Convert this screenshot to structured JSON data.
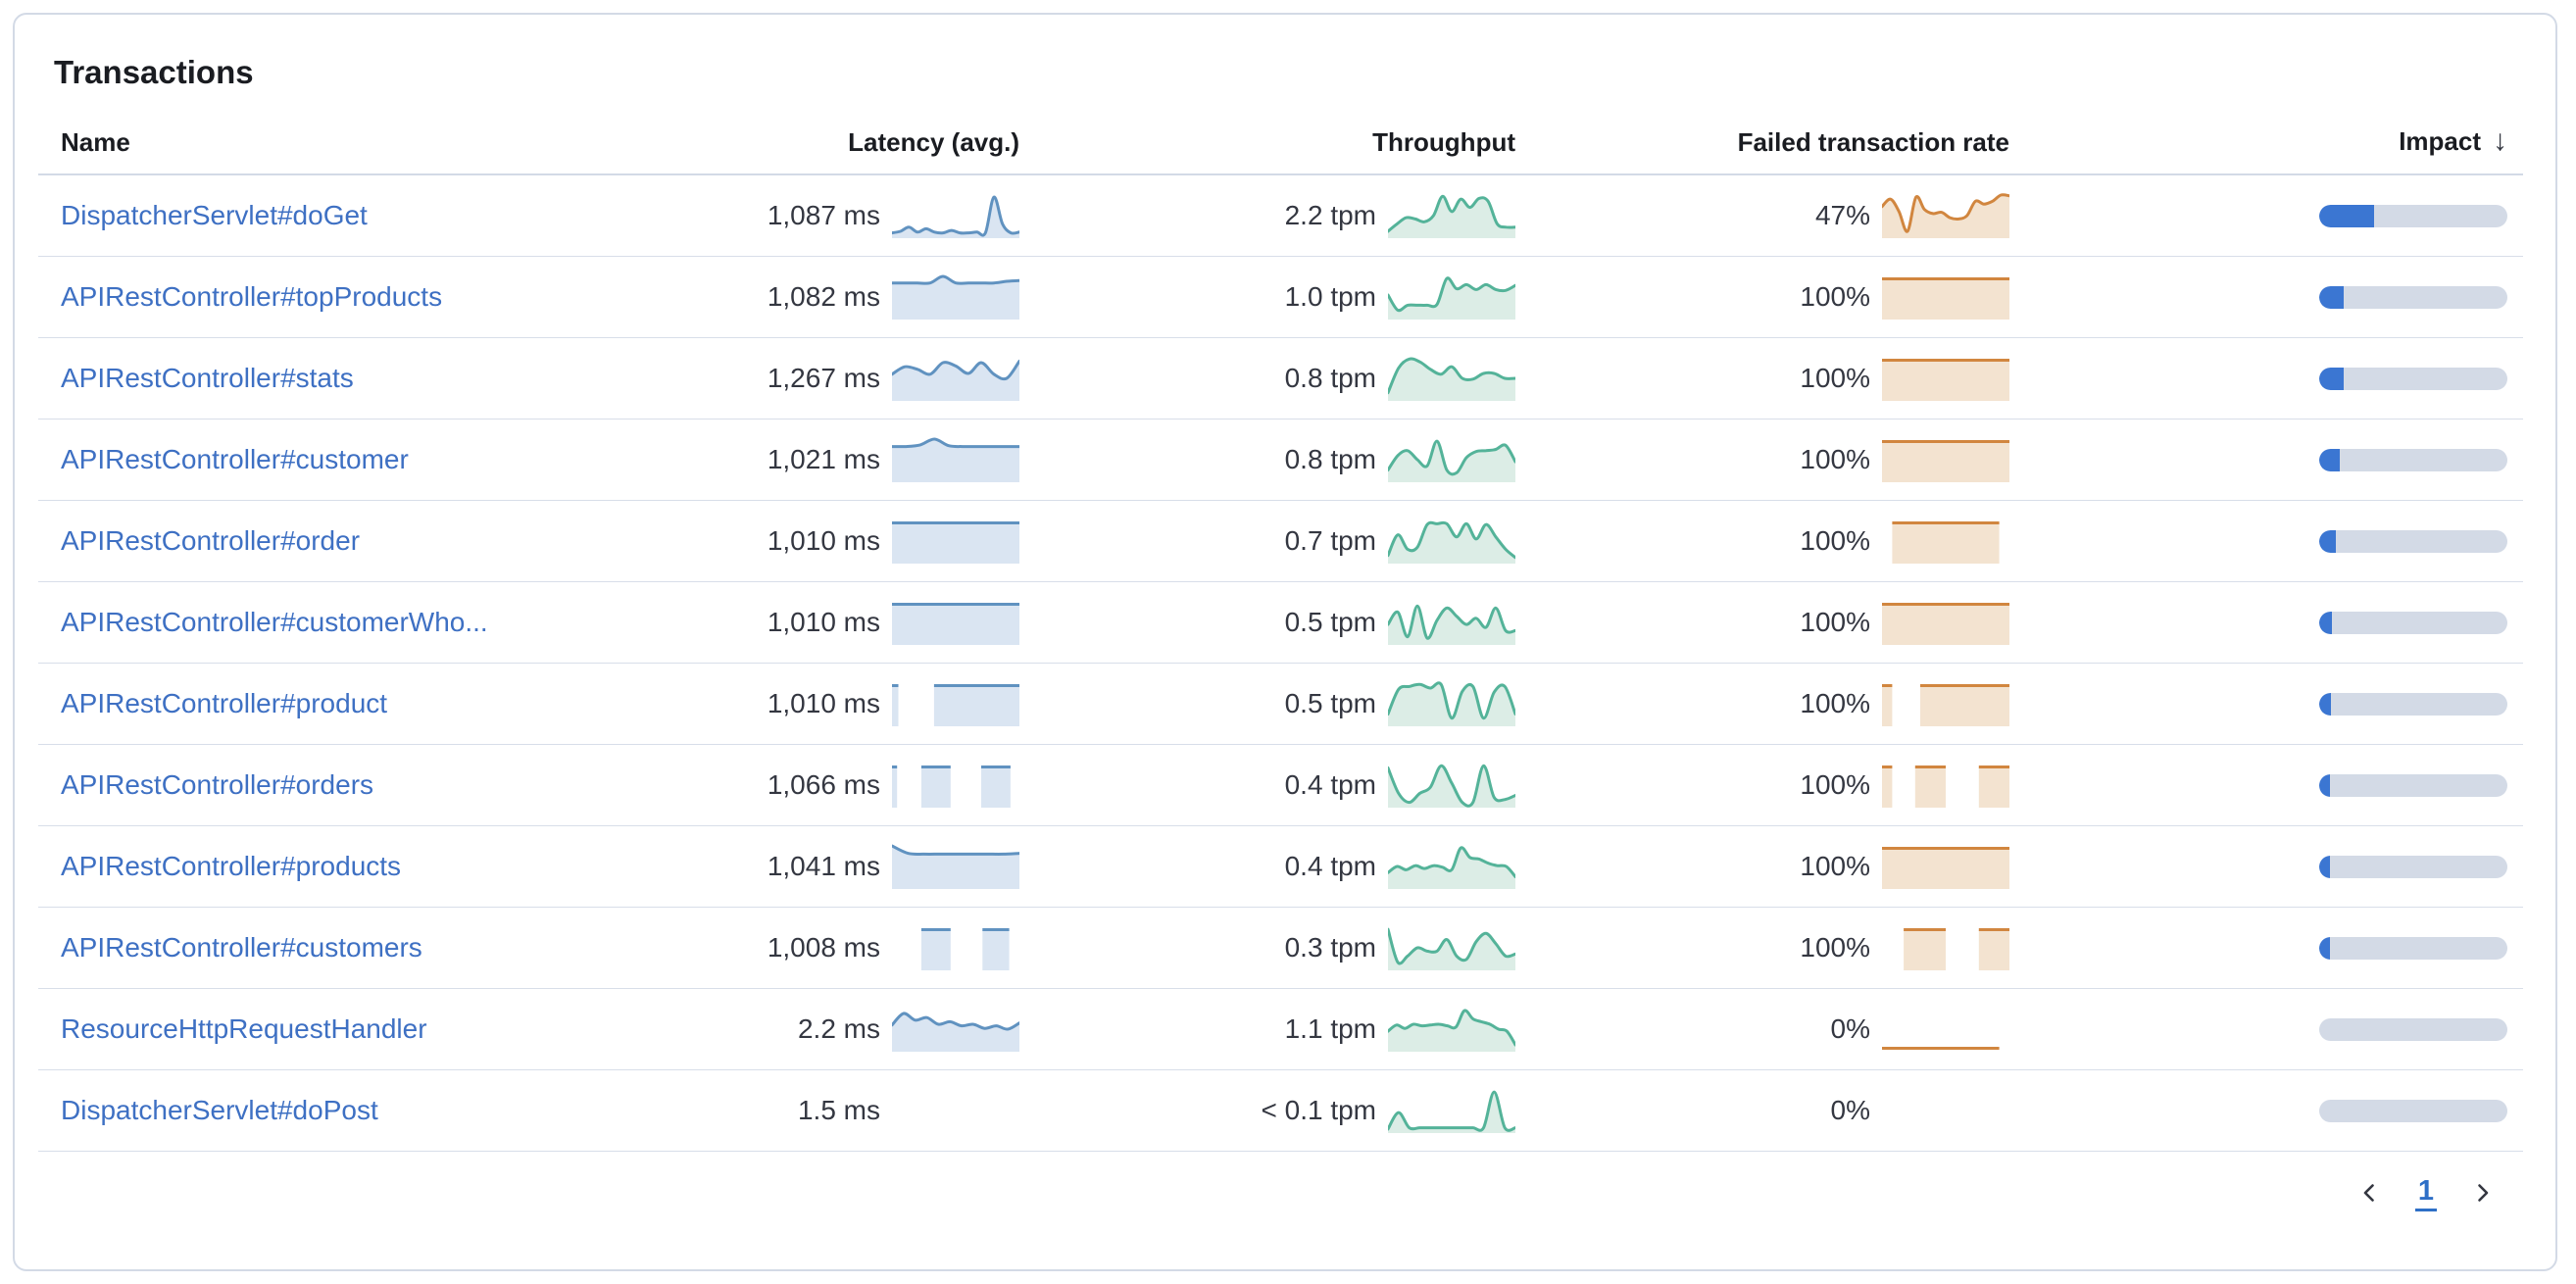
{
  "title": "Transactions",
  "colors": {
    "latency_line": "#6092C0",
    "latency_fill": "#DAE5F2",
    "throughput_line": "#54B399",
    "throughput_fill": "#DCEDE6",
    "failed_line": "#D1863F",
    "failed_fill": "#F3E3D0",
    "impact_fill": "#3B76D2",
    "impact_track": "#D3DAE6",
    "link": "#3E70C3"
  },
  "table": {
    "columns": {
      "name": "Name",
      "latency": "Latency (avg.)",
      "throughput": "Throughput",
      "failed": "Failed transaction rate",
      "impact": "Impact"
    },
    "sort_icon": "↓",
    "rows": [
      {
        "name": "DispatcherServlet#doGet",
        "latency": "1,087 ms",
        "latency_spark": {
          "type": "area",
          "points": [
            0.08,
            0.12,
            0.22,
            0.1,
            0.18,
            0.1,
            0.08,
            0.14,
            0.08,
            0.08,
            0.1,
            0.08,
            0.95,
            0.3,
            0.08,
            0.1
          ]
        },
        "throughput": "2.2 tpm",
        "throughput_spark": {
          "type": "area",
          "points": [
            0.12,
            0.3,
            0.45,
            0.42,
            0.35,
            0.5,
            0.97,
            0.6,
            0.9,
            0.7,
            0.92,
            0.85,
            0.3,
            0.22,
            0.22
          ]
        },
        "failed": "47%",
        "failed_spark": {
          "type": "area",
          "points": [
            0.72,
            0.9,
            0.6,
            0.12,
            0.95,
            0.65,
            0.55,
            0.58,
            0.45,
            0.42,
            0.5,
            0.85,
            0.78,
            0.85,
            1.0,
            0.98
          ]
        },
        "impact_pct": 29
      },
      {
        "name": "APIRestController#topProducts",
        "latency": "1,082 ms",
        "latency_spark": {
          "type": "area",
          "points": [
            0.84,
            0.84,
            0.84,
            0.84,
            1.0,
            0.84,
            0.84,
            0.84,
            0.84,
            0.88,
            0.9
          ]
        },
        "throughput": "1.0 tpm",
        "throughput_spark": {
          "type": "area",
          "points": [
            0.55,
            0.18,
            0.3,
            0.3,
            0.3,
            0.32,
            0.95,
            0.7,
            0.8,
            0.68,
            0.8,
            0.68,
            0.66,
            0.78
          ]
        },
        "failed": "100%",
        "failed_spark": {
          "type": "blocks",
          "blocks": [
            [
              0,
              1
            ]
          ]
        },
        "impact_pct": 13
      },
      {
        "name": "APIRestController#stats",
        "latency": "1,267 ms",
        "latency_spark": {
          "type": "area",
          "points": [
            0.6,
            0.78,
            0.72,
            0.6,
            0.88,
            0.8,
            0.62,
            0.88,
            0.6,
            0.5,
            0.92
          ]
        },
        "throughput": "0.8 tpm",
        "throughput_spark": {
          "type": "area",
          "points": [
            0.15,
            0.75,
            0.97,
            0.9,
            0.72,
            0.6,
            0.78,
            0.5,
            0.48,
            0.62,
            0.62,
            0.5,
            0.5
          ]
        },
        "failed": "100%",
        "failed_spark": {
          "type": "blocks",
          "blocks": [
            [
              0,
              1
            ]
          ]
        },
        "impact_pct": 13
      },
      {
        "name": "APIRestController#customer",
        "latency": "1,021 ms",
        "latency_spark": {
          "type": "area",
          "points": [
            0.82,
            0.82,
            0.86,
            1.0,
            0.84,
            0.82,
            0.82,
            0.82,
            0.82,
            0.82
          ]
        },
        "throughput": "0.8 tpm",
        "throughput_spark": {
          "type": "area",
          "points": [
            0.25,
            0.6,
            0.72,
            0.5,
            0.35,
            0.95,
            0.25,
            0.18,
            0.55,
            0.7,
            0.72,
            0.75,
            0.85,
            0.45
          ]
        },
        "failed": "100%",
        "failed_spark": {
          "type": "blocks",
          "blocks": [
            [
              0,
              1
            ]
          ]
        },
        "impact_pct": 11
      },
      {
        "name": "APIRestController#order",
        "latency": "1,010 ms",
        "latency_spark": {
          "type": "blocks",
          "blocks": [
            [
              0,
              1
            ]
          ]
        },
        "throughput": "0.7 tpm",
        "throughput_spark": {
          "type": "area",
          "points": [
            0.15,
            0.65,
            0.3,
            0.35,
            0.9,
            0.92,
            0.92,
            0.6,
            0.92,
            0.55,
            0.9,
            0.6,
            0.3,
            0.1
          ]
        },
        "failed": "100%",
        "failed_spark": {
          "type": "blocks",
          "blocks": [
            [
              0.08,
              0.92
            ]
          ]
        },
        "impact_pct": 9
      },
      {
        "name": "APIRestController#customerWho...",
        "latency": "1,010 ms",
        "latency_spark": {
          "type": "blocks",
          "blocks": [
            [
              0,
              1
            ]
          ]
        },
        "throughput": "0.5 tpm",
        "throughput_spark": {
          "type": "area",
          "points": [
            0.45,
            0.75,
            0.15,
            0.9,
            0.12,
            0.55,
            0.85,
            0.65,
            0.45,
            0.6,
            0.38,
            0.85,
            0.3,
            0.3
          ]
        },
        "failed": "100%",
        "failed_spark": {
          "type": "blocks",
          "blocks": [
            [
              0,
              1
            ]
          ]
        },
        "impact_pct": 7
      },
      {
        "name": "APIRestController#product",
        "latency": "1,010 ms",
        "latency_spark": {
          "type": "blocks",
          "blocks": [
            [
              0,
              0.05
            ],
            [
              0.33,
              1
            ]
          ]
        },
        "throughput": "0.5 tpm",
        "throughput_spark": {
          "type": "area",
          "points": [
            0.25,
            0.85,
            0.92,
            0.97,
            0.88,
            0.97,
            0.15,
            0.8,
            0.92,
            0.15,
            0.78,
            0.92,
            0.25
          ]
        },
        "failed": "100%",
        "failed_spark": {
          "type": "blocks",
          "blocks": [
            [
              0,
              0.08
            ],
            [
              0.3,
              1
            ]
          ]
        },
        "impact_pct": 6
      },
      {
        "name": "APIRestController#orders",
        "latency": "1,066 ms",
        "latency_spark": {
          "type": "blocks",
          "blocks": [
            [
              0,
              0.04
            ],
            [
              0.23,
              0.46
            ],
            [
              0.7,
              0.93
            ]
          ]
        },
        "throughput": "0.4 tpm",
        "throughput_spark": {
          "type": "area",
          "points": [
            0.92,
            0.3,
            0.08,
            0.3,
            0.45,
            0.97,
            0.55,
            0.08,
            0.08,
            0.97,
            0.2,
            0.15,
            0.25
          ]
        },
        "failed": "100%",
        "failed_spark": {
          "type": "blocks",
          "blocks": [
            [
              0,
              0.08
            ],
            [
              0.26,
              0.5
            ],
            [
              0.76,
              1
            ]
          ]
        },
        "impact_pct": 5.5
      },
      {
        "name": "APIRestController#products",
        "latency": "1,041 ms",
        "latency_spark": {
          "type": "area",
          "points": [
            1.0,
            0.82,
            0.8,
            0.8,
            0.8,
            0.8,
            0.8,
            0.8,
            0.82
          ]
        },
        "throughput": "0.4 tpm",
        "throughput_spark": {
          "type": "area",
          "points": [
            0.35,
            0.5,
            0.42,
            0.52,
            0.45,
            0.52,
            0.48,
            0.42,
            0.95,
            0.72,
            0.68,
            0.58,
            0.52,
            0.5,
            0.25
          ]
        },
        "failed": "100%",
        "failed_spark": {
          "type": "blocks",
          "blocks": [
            [
              0,
              1
            ]
          ]
        },
        "impact_pct": 5.5
      },
      {
        "name": "APIRestController#customers",
        "latency": "1,008 ms",
        "latency_spark": {
          "type": "blocks",
          "blocks": [
            [
              0.23,
              0.46
            ],
            [
              0.71,
              0.92
            ]
          ]
        },
        "throughput": "0.3 tpm",
        "throughput_spark": {
          "type": "area",
          "points": [
            0.95,
            0.15,
            0.3,
            0.5,
            0.42,
            0.42,
            0.7,
            0.3,
            0.22,
            0.65,
            0.85,
            0.6,
            0.3,
            0.35
          ]
        },
        "failed": "100%",
        "failed_spark": {
          "type": "blocks",
          "blocks": [
            [
              0.17,
              0.5
            ],
            [
              0.76,
              1
            ]
          ]
        },
        "impact_pct": 5
      },
      {
        "name": "ResourceHttpRequestHandler",
        "latency": "2.2 ms",
        "latency_spark": {
          "type": "area",
          "points": [
            0.6,
            0.88,
            0.72,
            0.78,
            0.62,
            0.68,
            0.58,
            0.62,
            0.52,
            0.58,
            0.5,
            0.65
          ]
        },
        "throughput": "1.1 tpm",
        "throughput_spark": {
          "type": "area",
          "points": [
            0.45,
            0.6,
            0.52,
            0.62,
            0.58,
            0.6,
            0.62,
            0.58,
            0.55,
            0.95,
            0.75,
            0.68,
            0.62,
            0.5,
            0.45,
            0.12
          ]
        },
        "failed": "0%",
        "failed_spark": {
          "type": "baseline",
          "span": 0.92
        },
        "impact_pct": 0
      },
      {
        "name": "DispatcherServlet#doPost",
        "latency": "1.5 ms",
        "latency_spark": {
          "type": "none"
        },
        "throughput": "< 0.1 tpm",
        "throughput_spark": {
          "type": "area",
          "points": [
            0.05,
            0.45,
            0.08,
            0.08,
            0.08,
            0.08,
            0.08,
            0.08,
            0.08,
            0.08,
            0.95,
            0.08,
            0.08
          ]
        },
        "failed": "0%",
        "failed_spark": {
          "type": "none"
        },
        "impact_pct": 0
      }
    ]
  },
  "pagination": {
    "page": "1"
  }
}
